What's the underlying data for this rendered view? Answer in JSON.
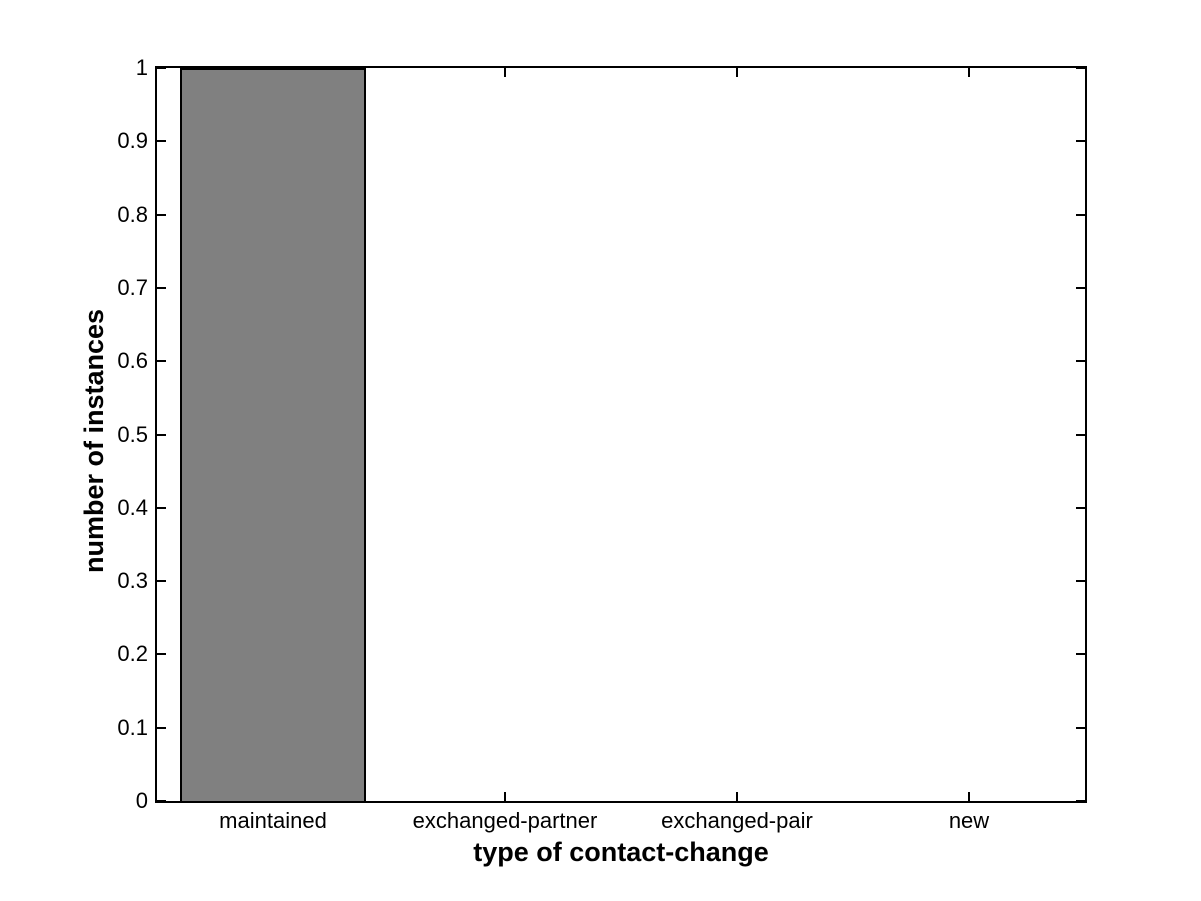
{
  "figure": {
    "background": "#ffffff"
  },
  "chart_data": {
    "type": "bar",
    "categories": [
      "maintained",
      "exchanged-partner",
      "exchanged-pair",
      "new"
    ],
    "values": [
      1,
      0,
      0,
      0
    ],
    "title": "",
    "xlabel": "type of contact-change",
    "ylabel": "number of instances",
    "ylim": [
      0,
      1
    ],
    "yticks": [
      0,
      0.1,
      0.2,
      0.3,
      0.4,
      0.5,
      0.6,
      0.7,
      0.8,
      0.9,
      1
    ],
    "ytick_labels": [
      "0",
      "0.1",
      "0.2",
      "0.3",
      "0.4",
      "0.5",
      "0.6",
      "0.7",
      "0.8",
      "0.9",
      "1"
    ],
    "bar_width_fraction": 0.8,
    "grid": false,
    "legend": false,
    "box": true,
    "colors": {
      "bar_fill": "#808080",
      "bar_edge": "#000000",
      "axis": "#000000",
      "text": "#000000"
    }
  }
}
